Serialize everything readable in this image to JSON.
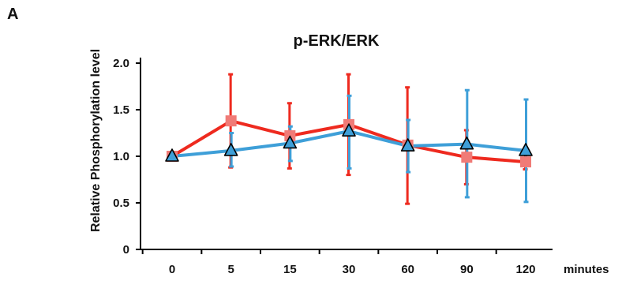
{
  "panel_label": "A",
  "chart_data": {
    "type": "line",
    "title": "p-ERK/ERK",
    "ylabel": "Relative Phosphorylation level",
    "xlabel": "minutes",
    "categories": [
      "0",
      "5",
      "15",
      "30",
      "60",
      "90",
      "120"
    ],
    "ylim": [
      0,
      2.0
    ],
    "yticks": [
      "0",
      "0.5",
      "1.0",
      "1.5",
      "2.0"
    ],
    "grid": false,
    "series": [
      {
        "marker": "square",
        "line_color": "#ee2a1f",
        "marker_color": "#f07b77",
        "values": [
          1.0,
          1.38,
          1.22,
          1.34,
          1.12,
          0.99,
          0.94
        ],
        "err_low": [
          1.0,
          0.88,
          0.87,
          0.8,
          0.49,
          0.7,
          0.86
        ],
        "err_high": [
          1.0,
          1.88,
          1.57,
          1.88,
          1.74,
          1.28,
          1.02
        ]
      },
      {
        "marker": "triangle",
        "line_color": "#3e9fd8",
        "marker_color": "#3e9fd8",
        "values": [
          1.0,
          1.06,
          1.14,
          1.27,
          1.11,
          1.13,
          1.06
        ],
        "err_low": [
          1.0,
          0.89,
          0.95,
          0.87,
          0.83,
          0.56,
          0.51
        ],
        "err_high": [
          1.0,
          1.25,
          1.32,
          1.65,
          1.39,
          1.71,
          1.61
        ]
      }
    ]
  }
}
